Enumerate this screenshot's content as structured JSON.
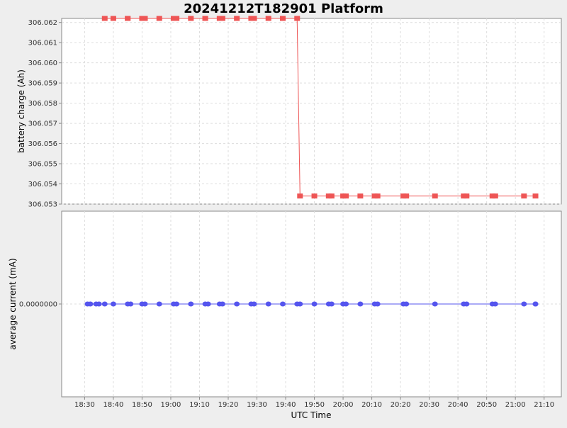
{
  "chart_data": [
    {
      "type": "line",
      "title": "20241212T182901 Platform",
      "xlabel": "UTC Time",
      "ylabel": "battery charge (Ah)",
      "ylim": [
        306.053,
        306.0622
      ],
      "yticks": [
        "306.053",
        "306.054",
        "306.055",
        "306.056",
        "306.057",
        "306.058",
        "306.059",
        "306.060",
        "306.061",
        "306.062"
      ],
      "xlim": [
        "18:22",
        "21:16"
      ],
      "xticks": [
        "18:30",
        "18:40",
        "18:50",
        "19:00",
        "19:10",
        "19:20",
        "19:30",
        "19:40",
        "19:50",
        "20:00",
        "20:10",
        "20:20",
        "20:30",
        "20:40",
        "20:50",
        "21:00",
        "21:10"
      ],
      "grid": true,
      "color": "#ee5555",
      "marker": "square",
      "series": [
        {
          "x": [
            "18:37",
            "18:40",
            "18:45",
            "18:45",
            "18:50",
            "18:51",
            "18:56",
            "19:01",
            "19:02",
            "19:07",
            "19:12",
            "19:12",
            "19:17",
            "19:18",
            "19:23",
            "19:28",
            "19:29",
            "19:34",
            "19:39",
            "19:44",
            "19:45",
            "19:50",
            "19:55",
            "19:56",
            "20:00",
            "20:01",
            "20:06",
            "20:11",
            "20:12",
            "20:21",
            "20:22",
            "20:32",
            "20:42",
            "20:43",
            "20:52",
            "20:53",
            "21:03",
            "21:07"
          ],
          "values": [
            306.0622,
            306.0622,
            306.0622,
            306.0622,
            306.0622,
            306.0622,
            306.0622,
            306.0622,
            306.0622,
            306.0622,
            306.0622,
            306.0622,
            306.0622,
            306.0622,
            306.0622,
            306.0622,
            306.0622,
            306.0622,
            306.0622,
            306.0622,
            306.0534,
            306.0534,
            306.0534,
            306.0534,
            306.0534,
            306.0534,
            306.0534,
            306.0534,
            306.0534,
            306.0534,
            306.0534,
            306.0534,
            306.0534,
            306.0534,
            306.0534,
            306.0534,
            306.0534,
            306.0534
          ]
        }
      ]
    },
    {
      "type": "line",
      "xlabel": "UTC Time",
      "ylabel": "average current (mA)",
      "ylim": [
        -1,
        1
      ],
      "yticks": [
        "0.0000000"
      ],
      "xlim": [
        "18:22",
        "21:16"
      ],
      "xticks": [
        "18:30",
        "18:40",
        "18:50",
        "19:00",
        "19:10",
        "19:20",
        "19:30",
        "19:40",
        "19:50",
        "20:00",
        "20:10",
        "20:20",
        "20:30",
        "20:40",
        "20:50",
        "21:00",
        "21:10"
      ],
      "grid": true,
      "color": "#5555ee",
      "marker": "circle",
      "series": [
        {
          "x": [
            "18:31",
            "18:32",
            "18:34",
            "18:35",
            "18:37",
            "18:40",
            "18:45",
            "18:46",
            "18:50",
            "18:51",
            "18:56",
            "19:01",
            "19:02",
            "19:07",
            "19:12",
            "19:13",
            "19:17",
            "19:18",
            "19:23",
            "19:28",
            "19:29",
            "19:34",
            "19:39",
            "19:44",
            "19:45",
            "19:50",
            "19:55",
            "19:56",
            "20:00",
            "20:01",
            "20:06",
            "20:11",
            "20:12",
            "20:21",
            "20:22",
            "20:32",
            "20:42",
            "20:43",
            "20:52",
            "20:53",
            "21:03",
            "21:07",
            "21:07"
          ],
          "values": [
            0,
            0,
            0,
            0,
            0,
            0,
            0,
            0,
            0,
            0,
            0,
            0,
            0,
            0,
            0,
            0,
            0,
            0,
            0,
            0,
            0,
            0,
            0,
            0,
            0,
            0,
            0,
            0,
            0,
            0,
            0,
            0,
            0,
            0,
            0,
            0,
            0,
            0,
            0,
            0,
            0,
            0,
            0
          ]
        }
      ]
    }
  ]
}
